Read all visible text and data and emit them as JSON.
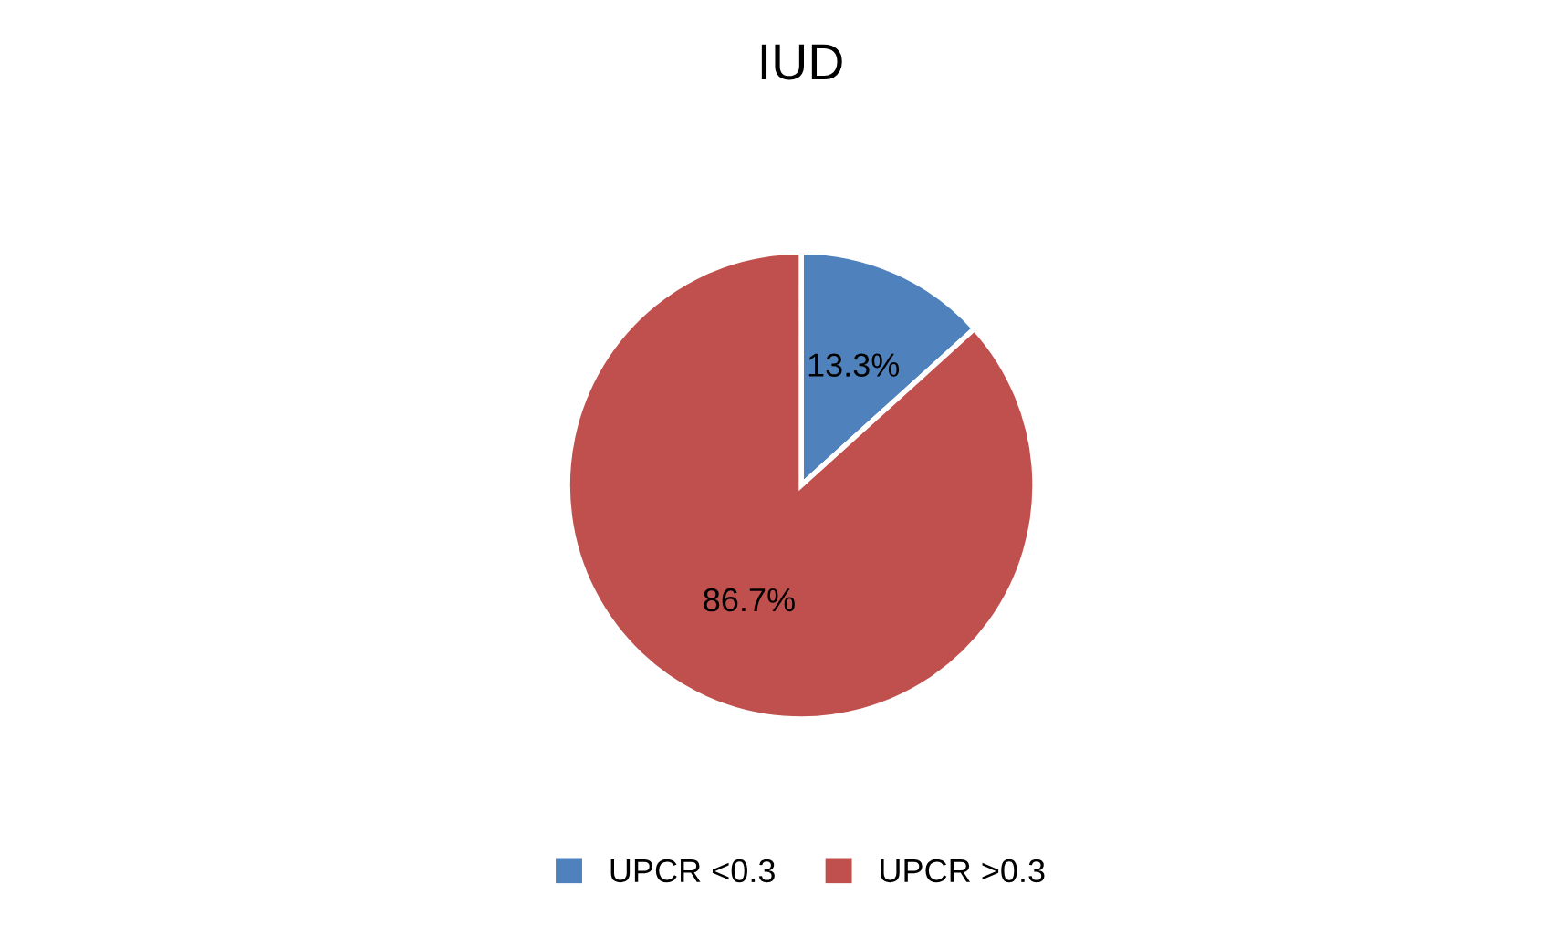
{
  "chart_data": {
    "type": "pie",
    "title": "IUD",
    "categories": [
      "UPCR <0.3",
      "UPCR >0.3"
    ],
    "values": [
      13.3,
      86.7
    ],
    "value_labels": [
      "13.3%",
      "86.7%"
    ],
    "colors": [
      "#4f81bd",
      "#c0504d"
    ],
    "legend": "bottom"
  }
}
